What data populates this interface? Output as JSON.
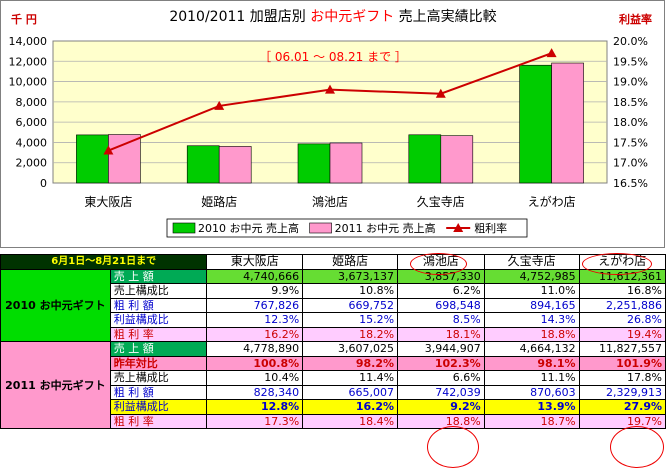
{
  "chart_data": {
    "type": "bar",
    "title_prefix": "2010/2011 加盟店別",
    "title_highlight": "お中元ギフト",
    "title_suffix": "売上高実績比較",
    "left_unit": "千 円",
    "right_unit": "利益率",
    "period_label": "［ 06.01 ～ 08.21 まで ］",
    "categories": [
      "東大阪店",
      "姫路店",
      "鴻池店",
      "久宝寺店",
      "えがわ店"
    ],
    "ylim": [
      0,
      14000
    ],
    "yticks": [
      "0",
      "2,000",
      "4,000",
      "6,000",
      "8,000",
      "10,000",
      "12,000",
      "14,000"
    ],
    "y2lim": [
      16.5,
      20.0
    ],
    "y2ticks": [
      "16.5%",
      "17.0%",
      "17.5%",
      "18.0%",
      "18.5%",
      "19.0%",
      "19.5%",
      "20.0%"
    ],
    "series": [
      {
        "name": "2010 お中元 売上高",
        "type": "bar",
        "color": "#00cc00",
        "values": [
          4741,
          3673,
          3857,
          4753,
          11612
        ]
      },
      {
        "name": "2011 お中元 売上高",
        "type": "bar",
        "color": "#ff99cc",
        "values": [
          4779,
          3607,
          3945,
          4664,
          11828
        ]
      },
      {
        "name": "粗利率",
        "type": "line",
        "color": "#cc0000",
        "values": [
          17.3,
          18.4,
          18.8,
          18.7,
          19.7
        ]
      }
    ],
    "plot_bg": "#ffffcc"
  },
  "table": {
    "corner": "6月1日～8月21日まで",
    "stores": [
      "東大阪店",
      "姫路店",
      "鴻池店",
      "久宝寺店",
      "えがわ店"
    ],
    "groups": [
      {
        "label": "2010 お中元ギフト",
        "rows": [
          {
            "label": "売 上 額",
            "values": [
              "4,740,666",
              "3,673,137",
              "3,857,330",
              "4,752,985",
              "11,612,361"
            ]
          },
          {
            "label": "売上構成比",
            "values": [
              "9.9%",
              "10.8%",
              "6.2%",
              "11.0%",
              "16.8%"
            ]
          },
          {
            "label": "粗 利 額",
            "values": [
              "767,826",
              "669,752",
              "698,548",
              "894,165",
              "2,251,886"
            ]
          },
          {
            "label": "利益構成比",
            "values": [
              "12.3%",
              "15.2%",
              "8.5%",
              "14.3%",
              "26.8%"
            ]
          },
          {
            "label": "粗 利 率",
            "values": [
              "16.2%",
              "18.2%",
              "18.1%",
              "18.8%",
              "19.4%"
            ]
          }
        ]
      },
      {
        "label": "2011 お中元ギフト",
        "rows": [
          {
            "label": "売 上 額",
            "values": [
              "4,778,890",
              "3,607,025",
              "3,944,907",
              "4,664,132",
              "11,827,557"
            ]
          },
          {
            "label": "昨年対比",
            "values": [
              "100.8%",
              "98.2%",
              "102.3%",
              "98.1%",
              "101.9%"
            ]
          },
          {
            "label": "売上構成比",
            "values": [
              "10.4%",
              "11.4%",
              "6.6%",
              "11.1%",
              "17.8%"
            ]
          },
          {
            "label": "粗 利 額",
            "values": [
              "828,340",
              "665,007",
              "742,039",
              "870,603",
              "2,329,913"
            ]
          },
          {
            "label": "利益構成比",
            "values": [
              "12.8%",
              "16.2%",
              "9.2%",
              "13.9%",
              "27.9%"
            ]
          },
          {
            "label": "粗 利 率",
            "values": [
              "17.3%",
              "18.4%",
              "18.8%",
              "18.7%",
              "19.7%"
            ]
          }
        ]
      }
    ]
  }
}
